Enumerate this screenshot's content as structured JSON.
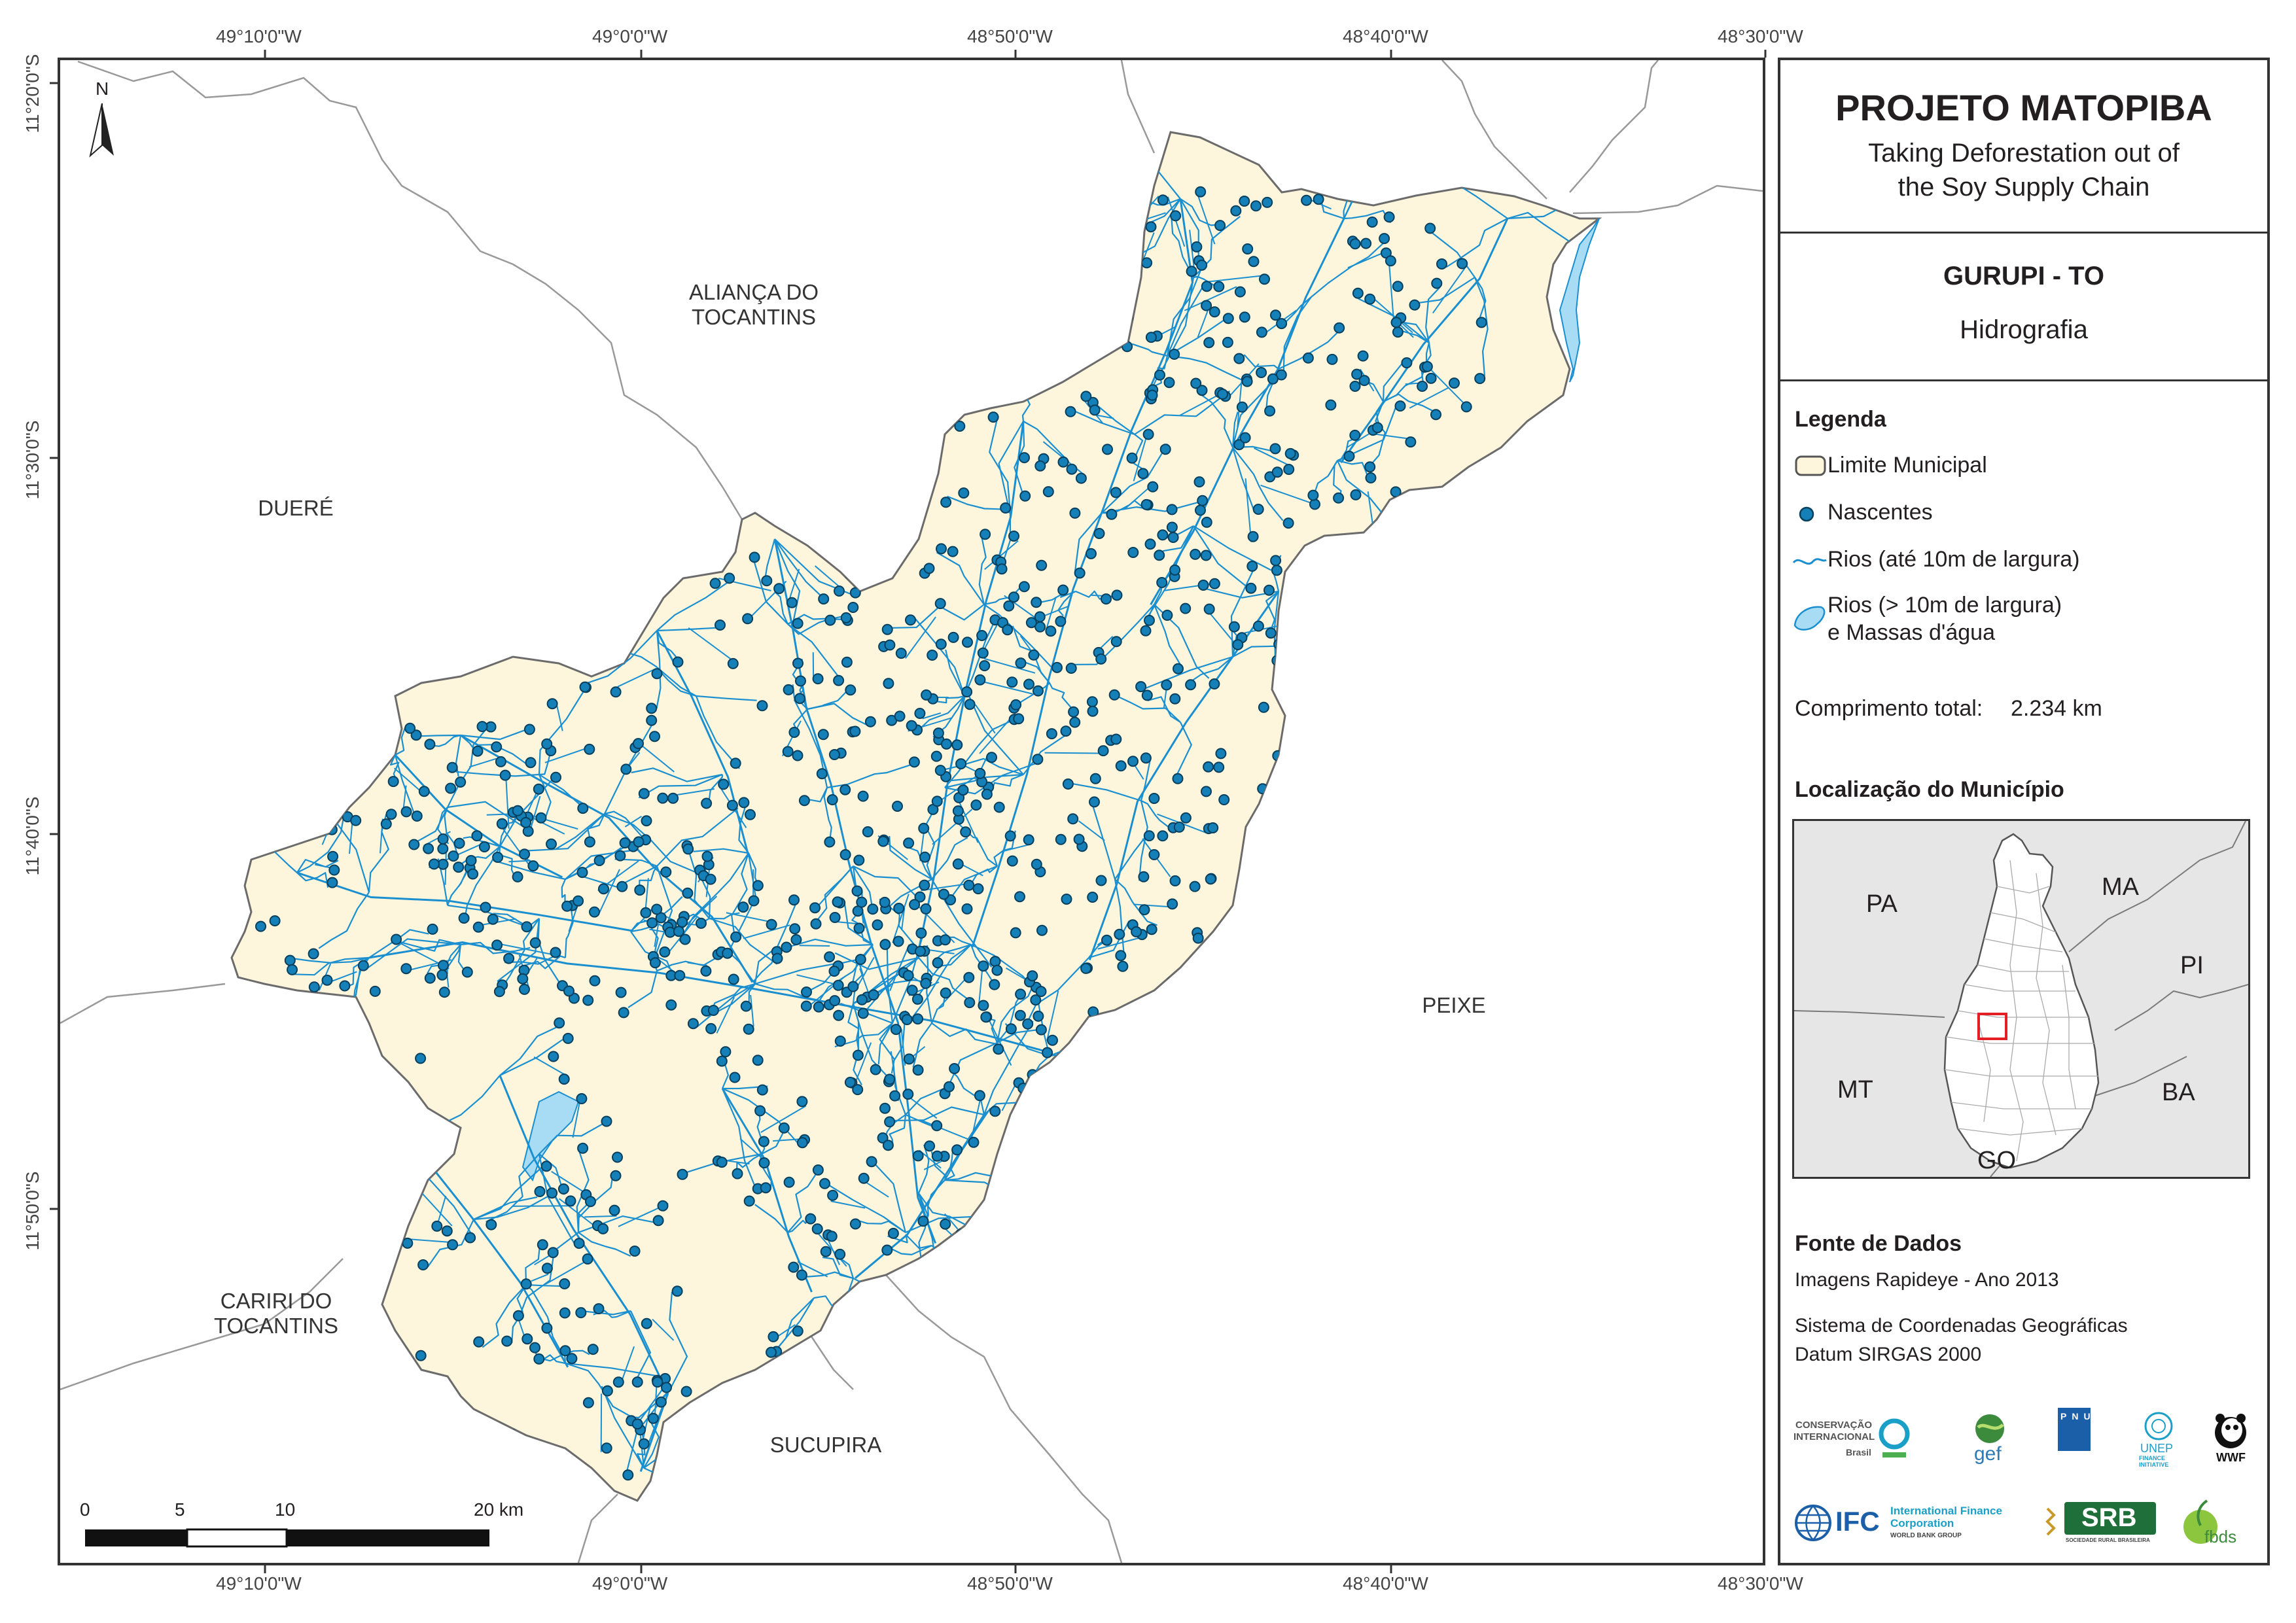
{
  "panel": {
    "title": "PROJETO MATOPIBA",
    "subtitle_line1": "Taking Deforestation out of",
    "subtitle_line2": "the Soy Supply Chain",
    "municipality": "GURUPI - TO",
    "theme": "Hidrografia",
    "legend": {
      "heading": "Legenda",
      "items": [
        "Limite Municipal",
        "Nascentes",
        "Rios (até 10m de largura)",
        "Rios (> 10m de largura)",
        "e Massas d'água"
      ],
      "total_length_label": "Comprimento total:",
      "total_length_value": "2.234 km"
    },
    "location": {
      "heading": "Localização do Município",
      "states": [
        "PA",
        "MA",
        "PI",
        "MT",
        "BA",
        "GO"
      ]
    },
    "sources": {
      "heading": "Fonte de Dados",
      "line1": "Imagens Rapideye - Ano 2013",
      "line2": "Sistema de Coordenadas Geográficas",
      "line3": "Datum SIRGAS 2000"
    },
    "logos": {
      "ci": "CONSERVAÇÃO INTERNACIONAL",
      "ci_sub": "Brasil",
      "gef": "gef",
      "pnud": "PNUD",
      "unep": "UNEP",
      "unep_sub": "FINANCE INITIATIVE",
      "wwf": "WWF",
      "ifc": "IFC",
      "ifc_full": "International Finance Corporation",
      "ifc_sub": "WORLD BANK GROUP",
      "srb": "SRB",
      "srb_sub": "SOCIEDADE RURAL BRASILEIRA",
      "fbds": "fbds"
    }
  },
  "map": {
    "north": "N",
    "top_coords": [
      "49°10'0\"W",
      "49°0'0\"W",
      "48°50'0\"W",
      "48°40'0\"W",
      "48°30'0\"W"
    ],
    "bottom_coords": [
      "49°10'0\"W",
      "49°0'0\"W",
      "48°50'0\"W",
      "48°40'0\"W",
      "48°30'0\"W"
    ],
    "left_coords": [
      "11°20'0\"S",
      "11°30'0\"S",
      "11°40'0\"S",
      "11°50'0\"S"
    ],
    "neighbors": {
      "alianca_1": "ALIANÇA DO",
      "alianca_2": "TOCANTINS",
      "duere": "DUERÉ",
      "peixe": "PEIXE",
      "cariri_1": "CARIRI DO",
      "cariri_2": "TOCANTINS",
      "sucupira": "SUCUPIRA"
    },
    "scale_labels": [
      "0",
      "5",
      "10",
      "20 km"
    ]
  },
  "colors": {
    "municipality_fill": "#fdf5dc",
    "river": "#1a8fd0",
    "spring": "#1580b8",
    "water_body": "#a8dcf4",
    "highlight": "#e31e24"
  }
}
